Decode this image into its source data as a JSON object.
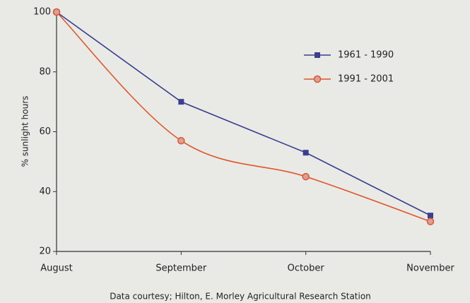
{
  "chart_data": {
    "type": "line",
    "y_label": "% sunlight hours",
    "caption": "Data courtesy; Hilton, E. Morley Agricultural Research Station",
    "categories": [
      "August",
      "September",
      "October",
      "November"
    ],
    "series": [
      {
        "name": "1961 - 1990",
        "color": "#3a3f8f",
        "marker": "square",
        "smooth": false,
        "values": [
          100,
          70,
          53,
          32
        ]
      },
      {
        "name": "1991 - 2001",
        "color": "#e0562a",
        "marker": "circle",
        "smooth": true,
        "values": [
          100,
          57,
          45,
          30
        ]
      }
    ],
    "ylim": [
      20,
      100
    ],
    "yticks": [
      20,
      40,
      60,
      80,
      100
    ],
    "legend": "upper right"
  }
}
